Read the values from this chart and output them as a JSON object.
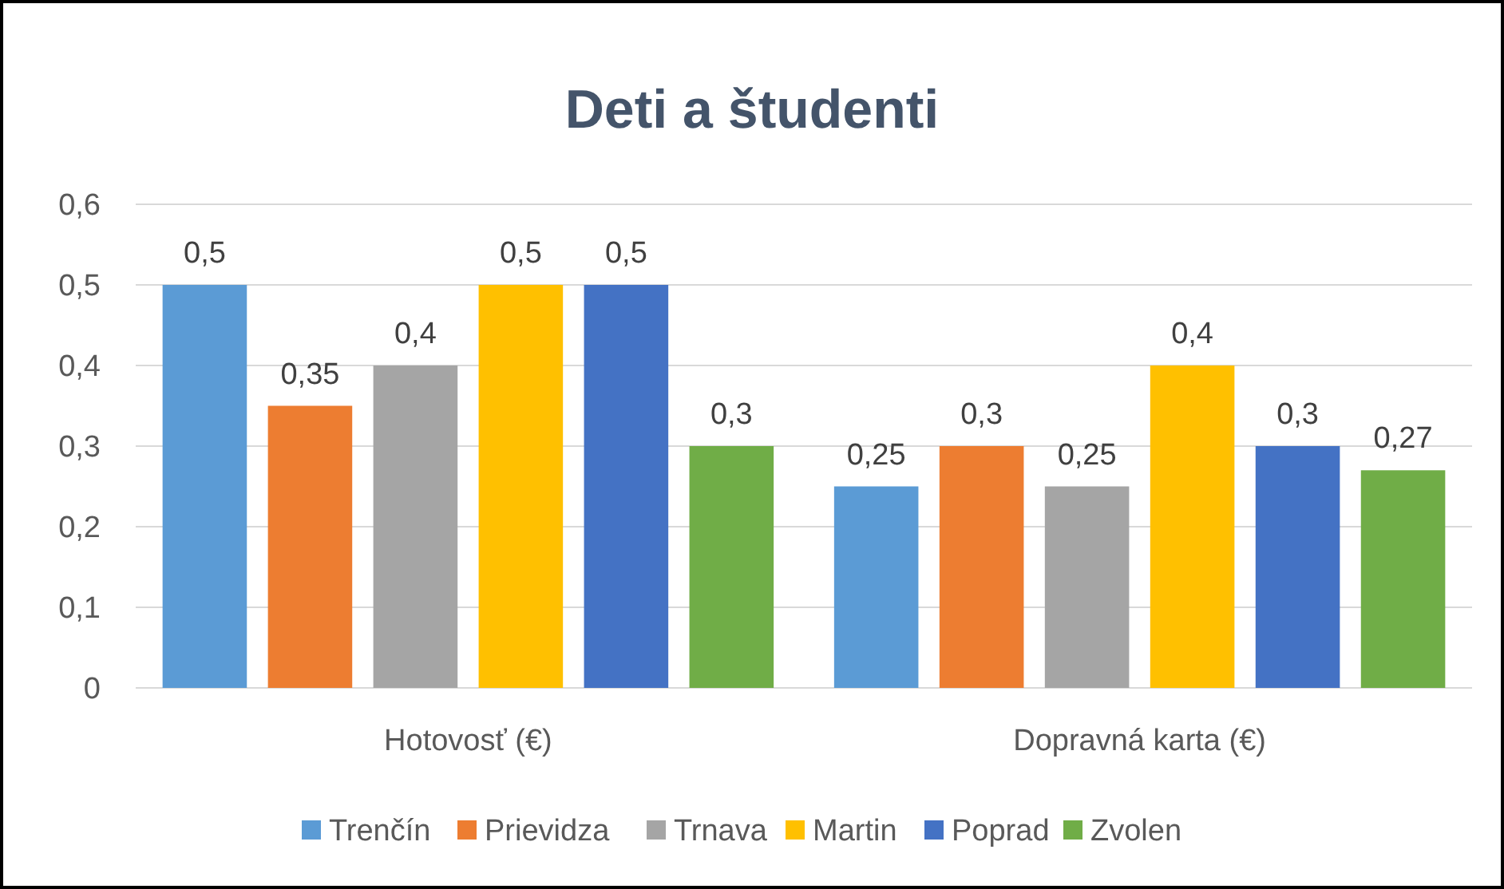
{
  "chart_data": {
    "type": "bar",
    "title": "Deti a študenti",
    "categories": [
      "Hotovosť (€)",
      "Dopravná karta (€)"
    ],
    "series": [
      {
        "name": "Trenčín",
        "color": "#5b9bd5",
        "values": [
          0.5,
          0.25
        ],
        "value_labels": [
          "0,5",
          "0,25"
        ]
      },
      {
        "name": "Prievidza",
        "color": "#ed7d31",
        "values": [
          0.35,
          0.3
        ],
        "value_labels": [
          "0,35",
          "0,3"
        ]
      },
      {
        "name": "Trnava",
        "color": "#a5a5a5",
        "values": [
          0.4,
          0.25
        ],
        "value_labels": [
          "0,4",
          "0,25"
        ]
      },
      {
        "name": "Martin",
        "color": "#ffc000",
        "values": [
          0.5,
          0.4
        ],
        "value_labels": [
          "0,5",
          "0,4"
        ]
      },
      {
        "name": "Poprad",
        "color": "#4472c4",
        "values": [
          0.5,
          0.3
        ],
        "value_labels": [
          "0,5",
          "0,3"
        ]
      },
      {
        "name": "Zvolen",
        "color": "#70ad47",
        "values": [
          0.3,
          0.27
        ],
        "value_labels": [
          "0,3",
          "0,27"
        ]
      }
    ],
    "ylim": [
      0,
      0.6
    ],
    "yticks": [
      0,
      {
        "value": 0.1,
        "label": "0,1"
      },
      {
        "value": 0.2,
        "label": "0,2"
      },
      {
        "value": 0.3,
        "label": "0,3"
      },
      {
        "value": 0.4,
        "label": "0,4"
      },
      {
        "value": 0.5,
        "label": "0,5"
      },
      {
        "value": 0.6,
        "label": "0,6"
      }
    ],
    "grid": "y",
    "legend": "bottom"
  }
}
